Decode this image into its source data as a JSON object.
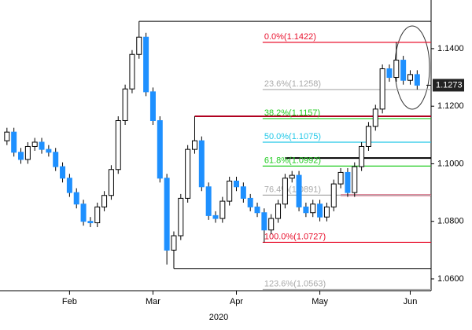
{
  "chart_data": {
    "type": "candlestick",
    "year_label": "2020",
    "up_color": "#ffffff",
    "down_color": "#1e90ff",
    "ylim": [
      1.0559,
      1.1569
    ],
    "yticks": [
      {
        "value": 1.14,
        "label": "1.1400"
      },
      {
        "value": 1.12,
        "label": "1.1200"
      },
      {
        "value": 1.1,
        "label": "1.1000"
      },
      {
        "value": 1.08,
        "label": "1.0800"
      },
      {
        "value": 1.06,
        "label": "1.0600"
      }
    ],
    "xlim": [
      -1,
      61
    ],
    "xticks": [
      {
        "value": 9,
        "label": "Feb"
      },
      {
        "value": 21,
        "label": "Mar"
      },
      {
        "value": 33,
        "label": "Apr"
      },
      {
        "value": 45,
        "label": "May"
      },
      {
        "value": 58,
        "label": "Jun"
      }
    ],
    "current_price": 1.1273,
    "open": [
      1.108,
      1.111,
      1.104,
      1.1015,
      1.106,
      1.1075,
      1.105,
      1.104,
      1.099,
      1.095,
      1.09,
      1.086,
      1.08,
      1.0795,
      1.085,
      1.089,
      1.098,
      1.115,
      1.126,
      1.138,
      1.144,
      1.125,
      1.115,
      1.095,
      1.07,
      1.075,
      1.088,
      1.105,
      1.108,
      1.092,
      1.082,
      1.081,
      1.087,
      1.094,
      1.092,
      1.088,
      1.085,
      1.083,
      1.077,
      1.081,
      1.086,
      1.095,
      1.096,
      1.085,
      1.083,
      1.086,
      1.0815,
      1.085,
      1.093,
      1.097,
      1.09,
      1.099,
      1.106,
      1.113,
      1.119,
      1.133,
      1.13,
      1.136,
      1.129,
      1.131
    ],
    "high": [
      1.1125,
      1.1125,
      1.1055,
      1.1075,
      1.109,
      1.109,
      1.1065,
      1.1055,
      1.1005,
      1.0965,
      1.0915,
      1.0875,
      1.0815,
      1.0865,
      1.0905,
      1.0995,
      1.1165,
      1.1275,
      1.1395,
      1.1495,
      1.1455,
      1.1265,
      1.1165,
      1.0965,
      1.0765,
      1.0895,
      1.1065,
      1.1165,
      1.1095,
      1.0935,
      1.0835,
      1.0885,
      1.0955,
      1.0955,
      1.0935,
      1.0895,
      1.0865,
      1.0845,
      1.0825,
      1.0875,
      1.0965,
      1.0975,
      1.0975,
      1.0865,
      1.0875,
      1.0875,
      1.0865,
      1.0945,
      1.0985,
      1.0985,
      1.1005,
      1.1075,
      1.1145,
      1.1205,
      1.1345,
      1.1345,
      1.1422,
      1.1375,
      1.1325,
      1.1325
    ],
    "low": [
      1.1065,
      1.1025,
      1.1,
      1.1,
      1.1045,
      1.1035,
      1.1025,
      1.0975,
      1.0935,
      1.0885,
      1.0845,
      1.0785,
      1.078,
      1.078,
      1.0835,
      1.0875,
      1.0965,
      1.1135,
      1.1245,
      1.1365,
      1.1235,
      1.1135,
      1.0935,
      1.065,
      1.0636,
      1.0735,
      1.0865,
      1.1035,
      1.0905,
      1.0805,
      1.0795,
      1.0795,
      1.0855,
      1.0905,
      1.0865,
      1.0835,
      1.0815,
      1.0727,
      1.0755,
      1.0795,
      1.0845,
      1.0935,
      1.0835,
      1.0815,
      1.0815,
      1.08,
      1.08,
      1.0835,
      1.0915,
      1.0885,
      1.0885,
      1.0975,
      1.1045,
      1.1115,
      1.1175,
      1.1285,
      1.1285,
      1.1275,
      1.1275,
      1.1258
    ],
    "close": [
      1.111,
      1.104,
      1.1015,
      1.106,
      1.1075,
      1.105,
      1.104,
      1.099,
      1.095,
      1.09,
      1.086,
      1.08,
      1.0795,
      1.085,
      1.089,
      1.098,
      1.115,
      1.126,
      1.138,
      1.144,
      1.125,
      1.115,
      1.095,
      1.07,
      1.075,
      1.088,
      1.105,
      1.108,
      1.092,
      1.082,
      1.081,
      1.087,
      1.094,
      1.092,
      1.088,
      1.085,
      1.083,
      1.077,
      1.081,
      1.086,
      1.095,
      1.096,
      1.085,
      1.083,
      1.086,
      1.0815,
      1.085,
      1.093,
      1.097,
      1.09,
      1.099,
      1.106,
      1.113,
      1.119,
      1.133,
      1.13,
      1.136,
      1.129,
      1.131,
      1.1273
    ],
    "levels": [
      {
        "value": 1.1495,
        "color": "#000000"
      },
      {
        "value": 1.0636,
        "color": "#000000"
      },
      {
        "value": 1.1165,
        "color": "#b00020"
      },
      {
        "value": 1.102,
        "color": "#000000"
      },
      {
        "value": 1.0891,
        "color": "#e00030"
      }
    ],
    "fibonacci": [
      {
        "label": "0.0%(1.1422)",
        "value": 1.1422,
        "color": "#e8112d"
      },
      {
        "label": "23.6%(1.1258)",
        "value": 1.1258,
        "color": "#aaaaaa"
      },
      {
        "label": "38.2%(1.1157)",
        "value": 1.1157,
        "color": "#22cc22"
      },
      {
        "label": "50.0%(1.1075)",
        "value": 1.1075,
        "color": "#22c8e8"
      },
      {
        "label": "61.8%(1.0992)",
        "value": 1.0992,
        "color": "#22cc22"
      },
      {
        "label": "76.4%(1.0891)",
        "value": 1.0891,
        "color": "#aaaaaa"
      },
      {
        "label": "100.0%(1.0727)",
        "value": 1.0727,
        "color": "#e8112d"
      },
      {
        "label": "123.6%(1.0563)",
        "value": 1.0563,
        "color": "#aaaaaa"
      }
    ]
  }
}
